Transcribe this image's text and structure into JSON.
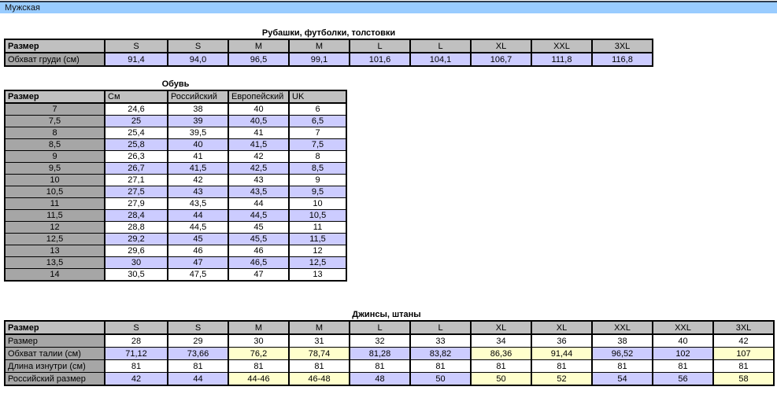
{
  "topbar": {
    "label": "Мужская"
  },
  "colors": {
    "topbar_blue": "#99ccff",
    "header_gray": "#c0c0c0",
    "label_gray": "#a6a6a6",
    "lavender": "#ccccff",
    "yellow": "#ffffcc",
    "white": "#ffffff"
  },
  "shirts_table": {
    "title": "Рубашки, футболки, толстовки",
    "header": [
      "Размер",
      "S",
      "S",
      "M",
      "M",
      "L",
      "L",
      "XL",
      "XXL",
      "3XL"
    ],
    "rows": [
      {
        "label": "Обхват груди (см)",
        "values": [
          "91,4",
          "94,0",
          "96,5",
          "99,1",
          "101,6",
          "104,1",
          "106,7",
          "111,8",
          "116,8"
        ],
        "fill": "lavender"
      }
    ]
  },
  "shoes_table": {
    "title": "Обувь",
    "header": [
      "Размер",
      "См",
      "Российский",
      "Европейский",
      "UK"
    ],
    "rows": [
      [
        "7",
        "24,6",
        "38",
        "40",
        "6"
      ],
      [
        "7,5",
        "25",
        "39",
        "40,5",
        "6,5"
      ],
      [
        "8",
        "25,4",
        "39,5",
        "41",
        "7"
      ],
      [
        "8,5",
        "25,8",
        "40",
        "41,5",
        "7,5"
      ],
      [
        "9",
        "26,3",
        "41",
        "42",
        "8"
      ],
      [
        "9,5",
        "26,7",
        "41,5",
        "42,5",
        "8,5"
      ],
      [
        "10",
        "27,1",
        "42",
        "43",
        "9"
      ],
      [
        "10,5",
        "27,5",
        "43",
        "43,5",
        "9,5"
      ],
      [
        "11",
        "27,9",
        "43,5",
        "44",
        "10"
      ],
      [
        "11,5",
        "28,4",
        "44",
        "44,5",
        "10,5"
      ],
      [
        "12",
        "28,8",
        "44,5",
        "45",
        "11"
      ],
      [
        "12,5",
        "29,2",
        "45",
        "45,5",
        "11,5"
      ],
      [
        "13",
        "29,6",
        "46",
        "46",
        "12"
      ],
      [
        "13,5",
        "30",
        "47",
        "46,5",
        "12,5"
      ],
      [
        "14",
        "30,5",
        "47,5",
        "47",
        "13"
      ]
    ],
    "row_stripe": [
      "white",
      "lavender"
    ]
  },
  "jeans_table": {
    "title": "Джинсы, штаны",
    "header": [
      "Размер",
      "S",
      "S",
      "M",
      "M",
      "L",
      "L",
      "XL",
      "XL",
      "XXL",
      "XXL",
      "3XL"
    ],
    "column_stripe": [
      "lavender",
      "lavender",
      "yellow",
      "yellow",
      "lavender",
      "lavender",
      "yellow",
      "yellow",
      "lavender",
      "lavender",
      "yellow"
    ],
    "rows": [
      {
        "label": "Размер",
        "values": [
          "28",
          "29",
          "30",
          "31",
          "32",
          "33",
          "34",
          "36",
          "38",
          "40",
          "42"
        ],
        "fill": "white"
      },
      {
        "label": "Обхват талии (см)",
        "values": [
          "71,12",
          "73,66",
          "76,2",
          "78,74",
          "81,28",
          "83,82",
          "86,36",
          "91,44",
          "96,52",
          "102",
          "107"
        ],
        "fill": "striped"
      },
      {
        "label": "Длина изнутри (см)",
        "values": [
          "81",
          "81",
          "81",
          "81",
          "81",
          "81",
          "81",
          "81",
          "81",
          "81",
          "81"
        ],
        "fill": "white"
      },
      {
        "label": "Российский размер",
        "values": [
          "42",
          "44",
          "44-46",
          "46-48",
          "48",
          "50",
          "50",
          "52",
          "54",
          "56",
          "58"
        ],
        "fill": "striped"
      }
    ]
  }
}
